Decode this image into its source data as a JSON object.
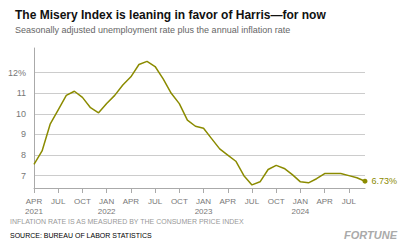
{
  "chart_data": {
    "type": "line",
    "title": "The Misery Index is leaning in favor of Harris—for now",
    "subtitle": "Seasonally adjusted unemployment rate plus the annual inflation rate",
    "footnote": "INFLATION RATE IS AS MEASURED BY THE CONSUMER PRICE INDEX",
    "source_label": "SOURCE: ",
    "source_link": "BUREAU OF LABOR STATISTICS",
    "brand": "FORTUNE",
    "color": "#8B8B00",
    "categories": [
      "APR\n2021",
      null,
      null,
      "JUL",
      null,
      null,
      "OCT",
      null,
      null,
      "JAN\n2022",
      null,
      null,
      "APR",
      null,
      null,
      "JUL",
      null,
      null,
      "OCT",
      null,
      null,
      "JAN\n2023",
      null,
      null,
      "APR",
      null,
      null,
      "JUL",
      null,
      null,
      "OCT",
      null,
      null,
      "JAN\n2024",
      null,
      null,
      "APR",
      null,
      null,
      "JUL",
      null,
      null
    ],
    "values": [
      7.55,
      8.2,
      9.5,
      10.2,
      10.9,
      11.1,
      10.8,
      10.3,
      10.05,
      10.5,
      10.9,
      11.4,
      11.8,
      12.4,
      12.55,
      12.3,
      11.7,
      11.0,
      10.5,
      9.7,
      9.4,
      9.3,
      8.8,
      8.3,
      8.0,
      7.7,
      7.0,
      6.55,
      6.7,
      7.3,
      7.5,
      7.35,
      7.05,
      6.7,
      6.65,
      6.85,
      7.1,
      7.1,
      7.1,
      7.0,
      6.9,
      6.73
    ],
    "value_labels": [
      null,
      null,
      null,
      null,
      null,
      null,
      null,
      null,
      null,
      null,
      null,
      null,
      null,
      null,
      null,
      null,
      null,
      null,
      null,
      null,
      null,
      null,
      null,
      null,
      null,
      null,
      null,
      null,
      null,
      null,
      null,
      null,
      null,
      null,
      null,
      null,
      null,
      null,
      null,
      null,
      null,
      "6.73%"
    ],
    "ylim": [
      6.4,
      13.2
    ],
    "yticks": [
      7,
      8,
      9,
      10,
      11,
      {
        "value": 12,
        "label": "12%"
      }
    ],
    "grid": true
  }
}
